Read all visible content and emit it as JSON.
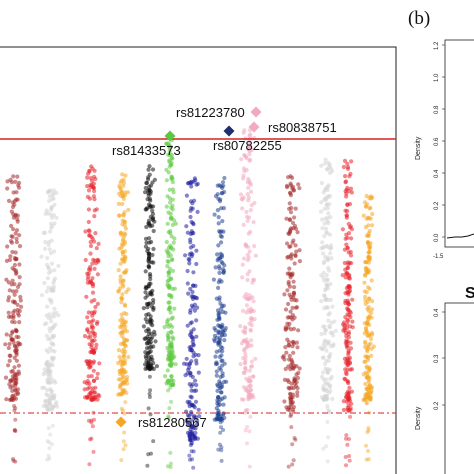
{
  "panel_b_letter": "(b)",
  "chart_data": [
    {
      "type": "scatter",
      "title": "",
      "xlabel": "",
      "ylabel": "",
      "threshold_lines": [
        {
          "style": "solid",
          "color": "#d62020",
          "relative_level": 0.85
        },
        {
          "style": "dash-dot",
          "color": "#d62020",
          "relative_level": 0.12
        }
      ],
      "chromosome_colors": [
        "#a52a2a",
        "#d3d3d3",
        "#e8202a",
        "#f5a623",
        "#111111",
        "#5cc840",
        "#1f1f9e",
        "#1f3f8f",
        "#f2aac0",
        "#a52a2a",
        "#d3d3d3",
        "#e8202a",
        "#f5a623"
      ],
      "highlighted_snps": [
        {
          "label": "rs81223780",
          "color": "#f2aac0",
          "shape": "diamond"
        },
        {
          "label": "rs80838751",
          "color": "#f2aac0",
          "shape": "diamond"
        },
        {
          "label": "rs81433573",
          "color": "#5cc840",
          "shape": "diamond"
        },
        {
          "label": "rs80782255",
          "color": "#1f2f6f",
          "shape": "diamond"
        },
        {
          "label": "rs81280567",
          "color": "#f5a623",
          "shape": "diamond"
        }
      ]
    },
    {
      "type": "line",
      "ylabel": "Density",
      "y_ticks": [
        "0.0",
        "0.2",
        "0.4",
        "0.6",
        "0.8",
        "1.0",
        "1.2"
      ],
      "x_ticks": [
        "-1.5"
      ],
      "ylim": [
        0,
        1.2
      ]
    },
    {
      "type": "line",
      "ylabel": "Density",
      "y_ticks": [
        "0.2",
        "0.3",
        "0.4"
      ],
      "title_fragment": "S"
    }
  ]
}
